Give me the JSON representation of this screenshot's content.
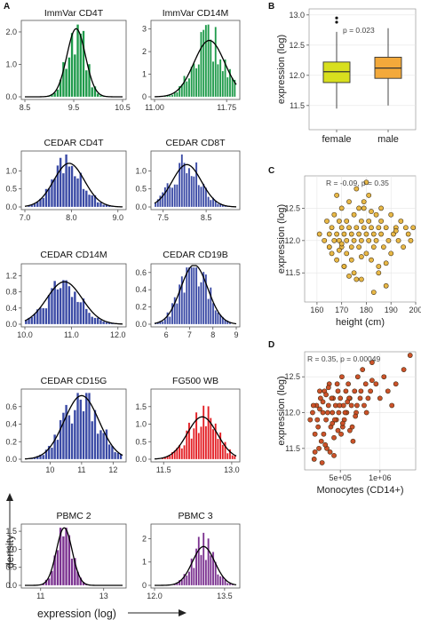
{
  "panel_labels": {
    "A": "A",
    "B": "B",
    "C": "C",
    "D": "D"
  },
  "axis_text": {
    "density": "density",
    "expression_log": "expression (log)",
    "height": "height (cm)",
    "monocytes": "Monocytes (CD14+)"
  },
  "colors": {
    "green": "#1e9a4a",
    "blue": "#3a4aa5",
    "red": "#e31e24",
    "purple": "#7b3290",
    "female_box": "#d8df1e",
    "male_box": "#f3a93b",
    "scatter_c": "#e7b43c",
    "scatter_d": "#c9491f"
  },
  "chart_data": [
    {
      "type": "histogram",
      "title": "ImmVar CD4T",
      "color": "green",
      "xlim": [
        8.5,
        10.5
      ],
      "ylim": [
        0,
        2.3
      ],
      "xticks": [
        "8.5",
        "9.5",
        "10.5"
      ],
      "yticks": [
        "0.0",
        "1.0",
        "2.0"
      ],
      "mean": 9.55,
      "sd": 0.19
    },
    {
      "type": "histogram",
      "title": "ImmVar CD14M",
      "color": "green",
      "xlim": [
        11.0,
        11.85
      ],
      "ylim": [
        0,
        3.3
      ],
      "xticks": [
        "11.00",
        "11.75"
      ],
      "yticks": [
        "0",
        "1",
        "2",
        "3"
      ],
      "mean": 11.57,
      "sd": 0.16
    },
    {
      "type": "histogram",
      "title": "CEDAR CD4T",
      "color": "blue",
      "xlim": [
        7.0,
        9.1
      ],
      "ylim": [
        0,
        1.5
      ],
      "xticks": [
        "7.0",
        "8.0",
        "9.0"
      ],
      "yticks": [
        "0.0",
        "0.5",
        "1.0"
      ],
      "mean": 7.95,
      "sd": 0.33
    },
    {
      "type": "histogram",
      "title": "CEDAR CD8T",
      "color": "blue",
      "xlim": [
        7.3,
        9.2
      ],
      "ylim": [
        0,
        1.5
      ],
      "xticks": [
        "7.5",
        "8.5"
      ],
      "yticks": [
        "0.0",
        "0.5",
        "1.0"
      ],
      "mean": 8.05,
      "sd": 0.34
    },
    {
      "type": "histogram",
      "title": "CEDAR CD14M",
      "color": "blue",
      "xlim": [
        10.0,
        12.1
      ],
      "ylim": [
        0,
        1.45
      ],
      "xticks": [
        "10.0",
        "11.0",
        "12.0"
      ],
      "yticks": [
        "0.0",
        "0.4",
        "0.8",
        "1.2"
      ],
      "mean": 10.85,
      "sd": 0.38
    },
    {
      "type": "histogram",
      "title": "CEDAR CD19B",
      "color": "blue",
      "xlim": [
        5.5,
        9.0
      ],
      "ylim": [
        0,
        0.68
      ],
      "xticks": [
        "6",
        "7",
        "8",
        "9"
      ],
      "yticks": [
        "0.0",
        "0.2",
        "0.4",
        "0.6"
      ],
      "mean": 7.2,
      "sd": 0.58
    },
    {
      "type": "histogram",
      "title": "CEDAR CD15G",
      "color": "blue",
      "xlim": [
        9.2,
        12.3
      ],
      "ylim": [
        0,
        0.78
      ],
      "xticks": [
        "10",
        "11",
        "12"
      ],
      "yticks": [
        "0.0",
        "0.2",
        "0.4",
        "0.6"
      ],
      "mean": 11.0,
      "sd": 0.55
    },
    {
      "type": "histogram",
      "title": "FG500 WB",
      "color": "red",
      "xlim": [
        11.3,
        13.1
      ],
      "ylim": [
        0,
        1.95
      ],
      "xticks": [
        "11.5",
        "13.0"
      ],
      "yticks": [
        "0.0",
        "0.5",
        "1.0",
        "1.5"
      ],
      "mean": 12.35,
      "sd": 0.33
    },
    {
      "type": "histogram",
      "title": "PBMC 2",
      "color": "purple",
      "xlim": [
        10.5,
        13.6
      ],
      "ylim": [
        0,
        1.65
      ],
      "xticks": [
        "11",
        "13"
      ],
      "yticks": [
        "0.0",
        "0.5",
        "1.0",
        "1.5"
      ],
      "mean": 11.75,
      "sd": 0.25
    },
    {
      "type": "histogram",
      "title": "PBMC 3",
      "color": "purple",
      "xlim": [
        12.0,
        13.75
      ],
      "ylim": [
        0,
        2.55
      ],
      "xticks": [
        "12.0",
        "13.5"
      ],
      "yticks": [
        "0",
        "1",
        "2"
      ],
      "mean": 13.05,
      "sd": 0.24
    },
    {
      "type": "boxplot",
      "categories": [
        "female",
        "male"
      ],
      "ylabel": "expression (log)",
      "ylim": [
        11.1,
        13.1
      ],
      "yticks": [
        "11.5",
        "12.0",
        "12.5",
        "13.0"
      ],
      "annotation": "p = 0.023",
      "boxes": [
        {
          "name": "female",
          "color": "female_box",
          "min": 11.45,
          "q1": 11.88,
          "median": 12.06,
          "q3": 12.22,
          "max": 12.72,
          "outliers": [
            12.95,
            12.88
          ]
        },
        {
          "name": "male",
          "color": "male_box",
          "min": 11.5,
          "q1": 11.95,
          "median": 12.12,
          "q3": 12.3,
          "max": 12.78,
          "outliers": []
        }
      ]
    },
    {
      "type": "scatter",
      "xlabel": "height (cm)",
      "ylabel": "expression (log)",
      "xlim": [
        155,
        200
      ],
      "ylim": [
        11.05,
        13.0
      ],
      "xticks": [
        "160",
        "170",
        "180",
        "190",
        "200"
      ],
      "yticks": [
        "11.5",
        "12.0",
        "12.5"
      ],
      "annotation": "R = -0.09, p = 0.35",
      "color": "scatter_c",
      "x": [
        161,
        163,
        164,
        165,
        165,
        166,
        166,
        167,
        167,
        168,
        168,
        169,
        169,
        170,
        170,
        170,
        171,
        171,
        172,
        172,
        172,
        173,
        173,
        174,
        174,
        175,
        175,
        175,
        176,
        176,
        177,
        177,
        178,
        178,
        178,
        179,
        179,
        180,
        180,
        180,
        181,
        181,
        182,
        182,
        183,
        183,
        184,
        184,
        185,
        185,
        186,
        186,
        187,
        188,
        188,
        189,
        190,
        190,
        191,
        192,
        193,
        194,
        195,
        196,
        197,
        198,
        199,
        168,
        171,
        176,
        179,
        183,
        186,
        174,
        177,
        181,
        165,
        170,
        185,
        192,
        169,
        173,
        178,
        182,
        188
      ],
      "y": [
        12.1,
        12.0,
        12.3,
        11.9,
        12.1,
        12.2,
        11.8,
        12.0,
        12.4,
        12.1,
        11.7,
        12.3,
        12.0,
        12.2,
        11.9,
        12.5,
        12.1,
        11.6,
        12.3,
        12.0,
        11.8,
        12.2,
        12.6,
        12.1,
        11.9,
        12.4,
        12.0,
        11.5,
        12.2,
        12.8,
        12.1,
        11.9,
        12.3,
        12.0,
        11.4,
        12.2,
        12.5,
        12.1,
        11.8,
        12.9,
        12.0,
        12.3,
        11.7,
        12.2,
        12.1,
        11.9,
        12.4,
        12.0,
        12.2,
        11.6,
        12.1,
        12.3,
        11.9,
        12.2,
        11.3,
        12.0,
        12.4,
        11.8,
        12.1,
        12.2,
        12.0,
        12.3,
        11.9,
        12.2,
        12.1,
        12.0,
        12.2,
        12.7,
        11.6,
        11.4,
        12.6,
        11.2,
        12.5,
        11.7,
        12.5,
        12.7,
        11.9,
        11.95,
        11.5,
        12.15,
        11.85,
        11.45,
        11.75,
        12.45,
        11.65
      ]
    },
    {
      "type": "scatter",
      "xlabel": "Monocytes (CD14+)",
      "ylabel": "expression (log)",
      "xlim": [
        50000,
        1450000
      ],
      "ylim": [
        11.2,
        12.85
      ],
      "xticks": [
        "5e+05",
        "1e+06"
      ],
      "yticks": [
        "11.5",
        "12.0",
        "12.5"
      ],
      "annotation": "R = 0.35, p = 0.00049",
      "color": "scatter_d",
      "x": [
        120000,
        150000,
        180000,
        200000,
        220000,
        250000,
        260000,
        280000,
        300000,
        320000,
        330000,
        350000,
        360000,
        380000,
        400000,
        410000,
        420000,
        440000,
        450000,
        470000,
        480000,
        500000,
        510000,
        520000,
        540000,
        550000,
        570000,
        580000,
        600000,
        620000,
        640000,
        650000,
        680000,
        700000,
        720000,
        750000,
        780000,
        800000,
        820000,
        850000,
        880000,
        900000,
        950000,
        1000000,
        1050000,
        1100000,
        1150000,
        1200000,
        1300000,
        1380000,
        160000,
        210000,
        240000,
        290000,
        340000,
        390000,
        430000,
        460000,
        490000,
        530000,
        560000,
        610000,
        660000,
        710000,
        760000,
        830000,
        170000,
        230000,
        270000,
        310000,
        370000,
        420000,
        470000,
        530000,
        590000,
        690000,
        240000,
        320000,
        400000,
        280000,
        180000,
        350000,
        620000,
        900000
      ],
      "y": [
        11.9,
        12.0,
        11.7,
        12.1,
        11.8,
        12.2,
        11.6,
        12.0,
        12.3,
        11.9,
        11.5,
        12.1,
        12.4,
        11.8,
        12.0,
        12.2,
        11.4,
        12.1,
        11.9,
        12.3,
        12.0,
        12.2,
        11.7,
        12.5,
        12.1,
        11.9,
        12.3,
        12.0,
        12.4,
        12.2,
        12.1,
        11.8,
        12.3,
        12.0,
        12.5,
        12.2,
        12.6,
        12.1,
        12.4,
        12.2,
        12.3,
        12.7,
        12.4,
        12.2,
        12.5,
        12.3,
        12.1,
        12.4,
        12.6,
        12.8,
        12.1,
        11.9,
        12.3,
        11.7,
        12.0,
        12.2,
        11.9,
        12.4,
        12.1,
        11.8,
        12.0,
        12.2,
        11.6,
        12.1,
        12.3,
        12.0,
        11.35,
        11.5,
        11.3,
        11.55,
        11.45,
        11.65,
        11.75,
        11.85,
        12.15,
        11.95,
        12.05,
        12.25,
        11.85,
        12.15,
        11.45,
        12.35,
        11.75,
        12.45
      ]
    }
  ]
}
